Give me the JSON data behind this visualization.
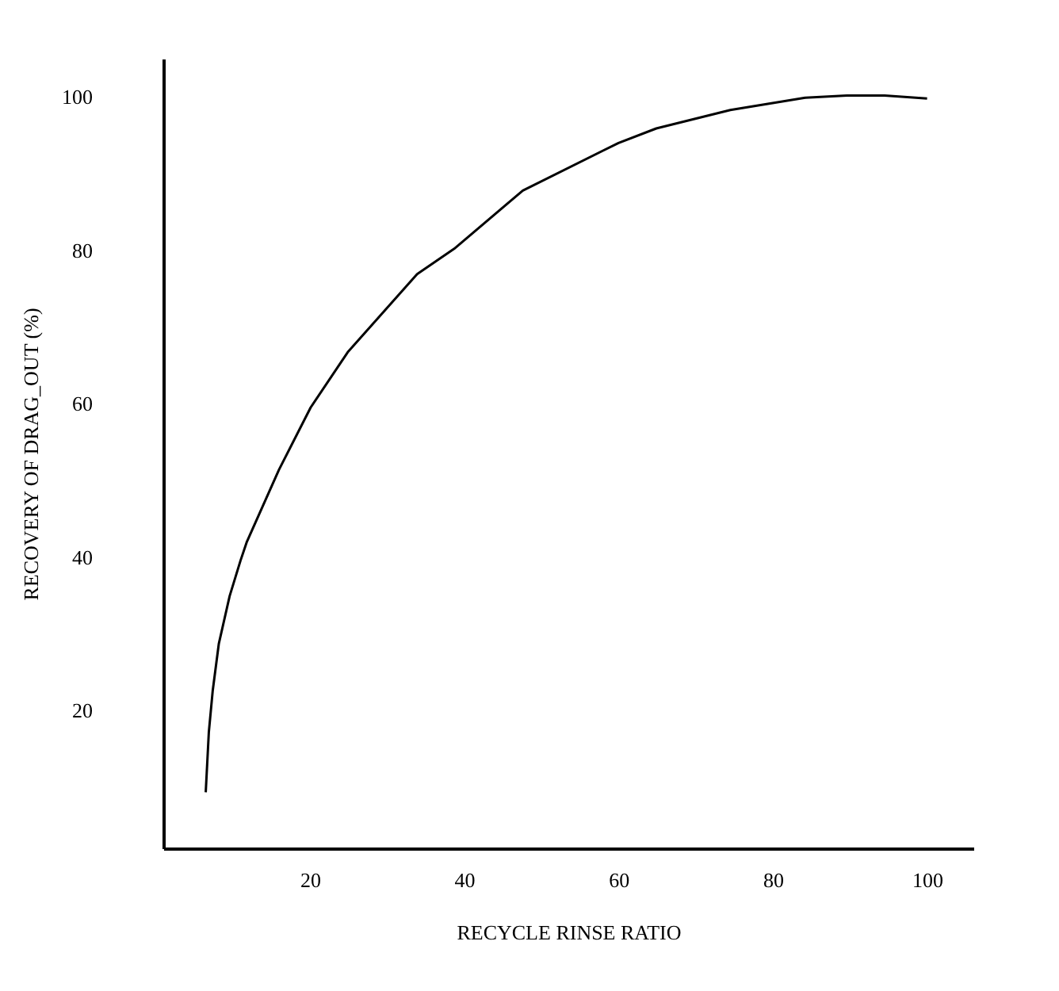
{
  "chart_data": {
    "type": "line",
    "xlabel": "RECYCLE RINSE RATIO",
    "ylabel": "RECOVERY OF DRAG_OUT (%)",
    "x": [
      6.5,
      6.9,
      7.4,
      8.2,
      9.6,
      11.0,
      11.8,
      16.0,
      20.1,
      24.9,
      33.9,
      38.7,
      47.6,
      60.0,
      64.9,
      74.5,
      84.2,
      89.6,
      94.5,
      100
    ],
    "series": [
      {
        "color": "#000000",
        "values": [
          9.3,
          17.1,
          22.5,
          28.7,
          34.9,
          39.5,
          41.9,
          51.4,
          59.5,
          66.7,
          76.9,
          80.2,
          87.8,
          94.0,
          95.9,
          98.3,
          99.9,
          100.2,
          100.2,
          99.8
        ]
      }
    ],
    "xlim": [
      1,
      106
    ],
    "ylim": [
      2,
      105
    ],
    "xticks": [
      20,
      40,
      60,
      80,
      100
    ],
    "yticks": [
      20,
      40,
      60,
      80,
      100
    ],
    "grid": false,
    "marker": "none",
    "line_style": "solid"
  }
}
